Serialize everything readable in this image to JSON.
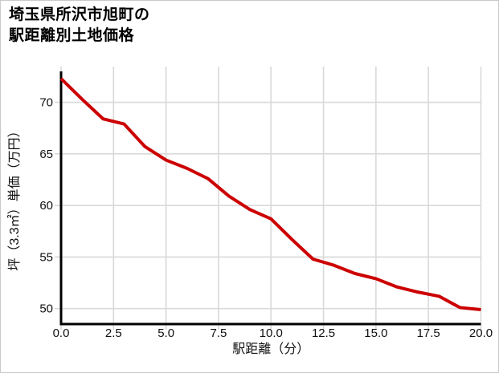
{
  "page": {
    "background": "#ffffff",
    "border_color": "#c9c9c9"
  },
  "chart_data": {
    "type": "line",
    "title_lines": [
      "埼玉県所沢市旭町の",
      "駅距離別土地価格"
    ],
    "xlabel": "駅距離（分）",
    "ylabel": "坪（3.3㎡）単価（万円）",
    "x": [
      0,
      1,
      2,
      3,
      4,
      5,
      6,
      7,
      8,
      9,
      10,
      11,
      12,
      13,
      14,
      15,
      16,
      17,
      18,
      19,
      20
    ],
    "values": [
      72.3,
      70.3,
      68.4,
      67.9,
      65.7,
      64.4,
      63.6,
      62.6,
      60.9,
      59.6,
      58.7,
      56.7,
      54.8,
      54.2,
      53.4,
      52.9,
      52.1,
      51.6,
      51.2,
      50.1,
      49.9
    ],
    "xlim": [
      0,
      20
    ],
    "ylim": [
      48.5,
      73
    ],
    "xticks": [
      0,
      2.5,
      5,
      7.5,
      10,
      12.5,
      15,
      17.5,
      20
    ],
    "xtick_labels": [
      "0.0",
      "2.5",
      "5.0",
      "7.5",
      "10.0",
      "12.5",
      "15.0",
      "17.5",
      "20.0"
    ],
    "yticks": [
      50,
      55,
      60,
      65,
      70
    ],
    "ytick_labels": [
      "50",
      "55",
      "60",
      "65",
      "70"
    ],
    "line_color": "#cc0000",
    "grid_color": "#d9d9d9",
    "axis_color": "#000000",
    "tick_label_color": "#111111",
    "grid": true,
    "legend": "none"
  }
}
